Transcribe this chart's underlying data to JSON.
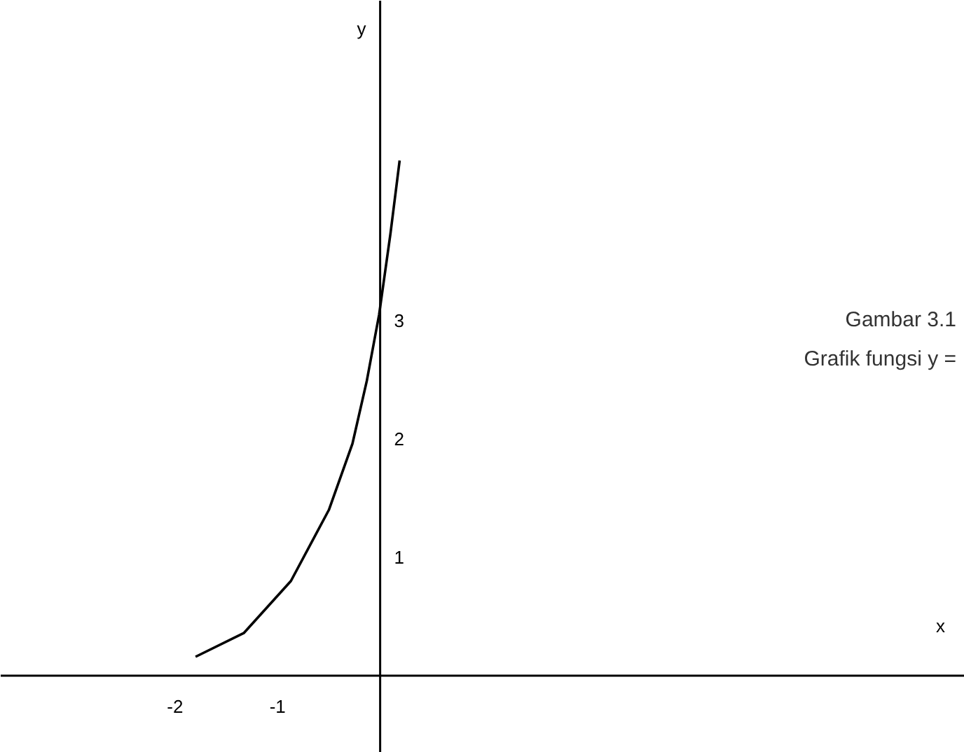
{
  "chart_data": {
    "type": "line",
    "xlabel": "x",
    "ylabel": "y",
    "annotations": [
      "Gambar 3.1",
      "Grafik fungsi y ="
    ],
    "x": [
      -1.8,
      -1.33,
      -0.87,
      -0.5,
      -0.27,
      -0.13,
      -0.01,
      0.1,
      0.19
    ],
    "values": [
      0.16,
      0.36,
      0.8,
      1.4,
      1.96,
      2.49,
      3.05,
      3.73,
      4.35
    ],
    "color": "#000000",
    "xlim": [
      -3.7,
      5.7
    ],
    "ylim": [
      -0.65,
      5.7
    ],
    "xticks": [
      -2,
      -1
    ],
    "yticks": [
      1,
      2,
      3
    ],
    "grid": false,
    "marker": "none",
    "line_style": "solid"
  }
}
